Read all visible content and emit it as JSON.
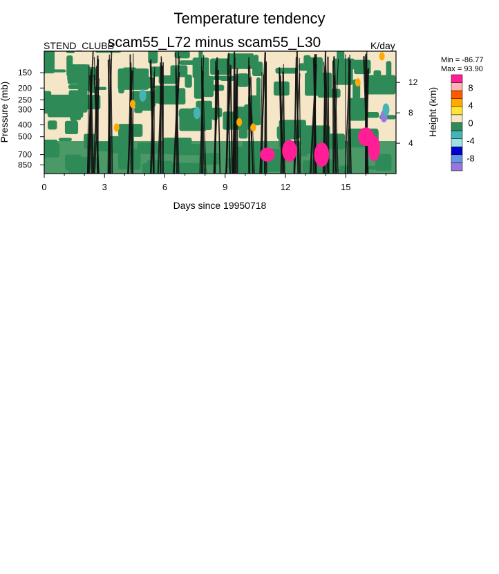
{
  "chart_data": {
    "type": "heatmap",
    "title": "Temperature tendency",
    "subtitle": "scam55_L72 minus scam55_L30",
    "left_label": "STEND_CLUBB",
    "units": "K/day",
    "xlabel": "Days since 19950718",
    "ylabel": "Pressure (mb)",
    "y2label": "Height (km)",
    "x_ticks": [
      "0",
      "3",
      "6",
      "9",
      "12",
      "15"
    ],
    "x_tick_values": [
      0,
      3,
      6,
      9,
      12,
      15
    ],
    "xlim": [
      0,
      17.5
    ],
    "y_ticks": [
      "150",
      "200",
      "250",
      "300",
      "400",
      "500",
      "700",
      "850"
    ],
    "y_tick_values": [
      150,
      200,
      250,
      300,
      400,
      500,
      700,
      850
    ],
    "ylim": [
      100,
      1000
    ],
    "y_scale": "log",
    "y2_ticks": [
      "12",
      "8",
      "4"
    ],
    "y2_tick_values": [
      12,
      8,
      4
    ],
    "min_text": "Min = -86.77",
    "max_text": "Max =  93.90",
    "colorbar": {
      "labels": [
        "8",
        "4",
        "0",
        "-4",
        "-8"
      ],
      "label_values": [
        8,
        4,
        0,
        -4,
        -8
      ],
      "colors": [
        "#ff1e96",
        "#ffb4b4",
        "#ff5a00",
        "#ffaa00",
        "#ffe632",
        "#f5e6c8",
        "#2e8b57",
        "#46b4b4",
        "#9be1e1",
        "#0000cd",
        "#6496e6",
        "#9678dc"
      ],
      "range": [
        -10,
        10
      ]
    },
    "field_note": "contour fill colors: cream ~0, green slightly negative, dark bands strong gradients, magenta strong positive, purple strong negative"
  }
}
